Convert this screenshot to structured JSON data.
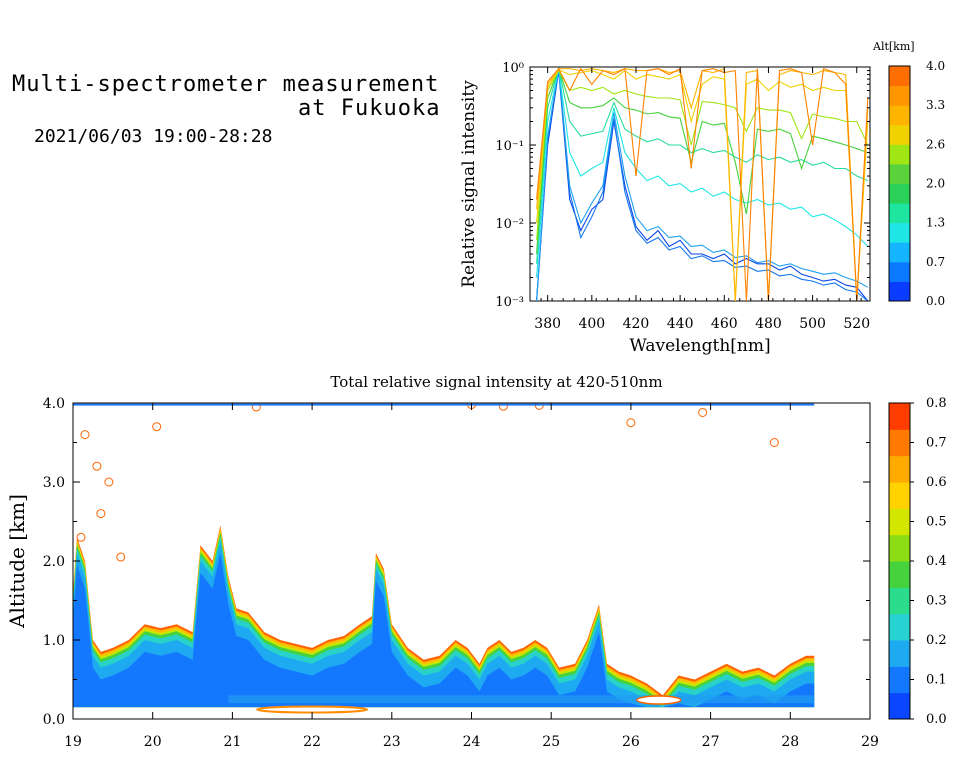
{
  "header": {
    "title_line1": "Multi-spectrometer measurement",
    "title_line2": "at Fukuoka",
    "subtitle": "2021/06/03 19:00-28:28"
  },
  "chart_data": [
    {
      "type": "line",
      "title": "",
      "xlabel": "Wavelength[nm]",
      "ylabel": "Relative signal intensity",
      "xlim": [
        372,
        526
      ],
      "ylim": [
        0.001,
        1
      ],
      "yscale": "log",
      "x_ticks": [
        380,
        400,
        420,
        440,
        460,
        480,
        500,
        520
      ],
      "y_tick_labels": [
        "10⁻³",
        "10⁻²",
        "10⁻¹",
        "10⁰"
      ],
      "y_tick_values": [
        0.001,
        0.01,
        0.1,
        1
      ],
      "colorbar": {
        "label": "Alt[km]",
        "range": [
          0.0,
          4.0
        ],
        "tick_labels": [
          "0.0",
          "0.7",
          "1.3",
          "2.0",
          "2.6",
          "3.3",
          "4.0"
        ],
        "colors": [
          "#0a3cff",
          "#0a78ff",
          "#14b4ff",
          "#1ee6e6",
          "#1ee6a0",
          "#2ad25a",
          "#5ad23c",
          "#a0e614",
          "#f0d200",
          "#ffb400",
          "#ff9600",
          "#ff6e00"
        ]
      },
      "x": [
        375,
        380,
        385,
        390,
        395,
        400,
        405,
        410,
        415,
        420,
        425,
        430,
        435,
        440,
        445,
        450,
        455,
        460,
        465,
        470,
        475,
        480,
        485,
        490,
        495,
        500,
        505,
        510,
        515,
        520,
        525
      ],
      "series": [
        {
          "color": "#0a46e6",
          "values": [
            0.001,
            0.1,
            0.9,
            0.02,
            0.008,
            0.015,
            0.02,
            0.2,
            0.03,
            0.009,
            0.006,
            0.008,
            0.005,
            0.006,
            0.004,
            0.004,
            0.0035,
            0.004,
            0.003,
            0.0035,
            0.003,
            0.003,
            0.0025,
            0.0028,
            0.0022,
            0.002,
            0.0018,
            0.0019,
            0.0016,
            0.0015,
            0.001
          ]
        },
        {
          "color": "#1478f0",
          "values": [
            0.001,
            0.12,
            0.95,
            0.025,
            0.0065,
            0.012,
            0.025,
            0.22,
            0.025,
            0.008,
            0.0055,
            0.0065,
            0.0045,
            0.005,
            0.0035,
            0.0038,
            0.0032,
            0.0033,
            0.0027,
            0.0028,
            0.0024,
            0.0025,
            0.0021,
            0.0022,
            0.0019,
            0.0018,
            0.0016,
            0.0017,
            0.0014,
            0.0013,
            0.001
          ]
        },
        {
          "color": "#1ea0f0",
          "values": [
            0.001,
            0.13,
            0.98,
            0.03,
            0.01,
            0.018,
            0.03,
            0.26,
            0.04,
            0.012,
            0.008,
            0.009,
            0.0065,
            0.0068,
            0.005,
            0.0052,
            0.0042,
            0.0045,
            0.0036,
            0.0038,
            0.0031,
            0.0033,
            0.0028,
            0.003,
            0.0026,
            0.0024,
            0.0022,
            0.0023,
            0.002,
            0.0018,
            0.0015
          ]
        },
        {
          "color": "#1ee6e6",
          "values": [
            0.002,
            0.2,
            0.95,
            0.08,
            0.04,
            0.05,
            0.06,
            0.3,
            0.08,
            0.05,
            0.035,
            0.04,
            0.03,
            0.032,
            0.025,
            0.028,
            0.022,
            0.025,
            0.02,
            0.018,
            0.02,
            0.017,
            0.018,
            0.015,
            0.016,
            0.012,
            0.013,
            0.011,
            0.009,
            0.007,
            0.005
          ]
        },
        {
          "color": "#28dc9a",
          "values": [
            0.003,
            0.3,
            0.97,
            0.2,
            0.13,
            0.14,
            0.15,
            0.35,
            0.16,
            0.13,
            0.11,
            0.12,
            0.1,
            0.1,
            0.08,
            0.09,
            0.08,
            0.085,
            0.07,
            0.06,
            0.075,
            0.065,
            0.07,
            0.06,
            0.065,
            0.055,
            0.06,
            0.05,
            0.05,
            0.04,
            0.035
          ]
        },
        {
          "color": "#46d23c",
          "values": [
            0.004,
            0.4,
            0.95,
            0.35,
            0.3,
            0.3,
            0.32,
            0.4,
            0.3,
            0.28,
            0.25,
            0.26,
            0.23,
            0.22,
            0.06,
            0.2,
            0.18,
            0.19,
            0.06,
            0.013,
            0.16,
            0.15,
            0.16,
            0.14,
            0.05,
            0.13,
            0.12,
            0.11,
            0.1,
            0.09,
            0.08
          ]
        },
        {
          "color": "#a0e614",
          "values": [
            0.006,
            0.5,
            0.9,
            0.5,
            0.55,
            0.5,
            0.55,
            0.45,
            0.5,
            0.45,
            0.42,
            0.4,
            0.4,
            0.38,
            0.1,
            0.36,
            0.35,
            0.33,
            0.3,
            0.15,
            0.3,
            0.28,
            0.28,
            0.26,
            0.12,
            0.25,
            0.23,
            0.22,
            0.2,
            0.2,
            0.1
          ]
        },
        {
          "color": "#f0d200",
          "values": [
            0.01,
            0.55,
            0.92,
            0.8,
            0.85,
            0.9,
            0.8,
            0.7,
            0.9,
            0.7,
            0.8,
            0.75,
            0.7,
            0.8,
            0.2,
            0.6,
            0.75,
            0.7,
            0.001,
            0.6,
            0.7,
            0.5,
            0.65,
            0.55,
            0.6,
            0.5,
            0.55,
            0.5,
            0.5,
            0.001,
            0.2
          ]
        },
        {
          "color": "#ffb400",
          "values": [
            0.015,
            0.6,
            0.95,
            0.95,
            0.9,
            0.95,
            0.9,
            0.85,
            0.95,
            0.9,
            0.9,
            0.95,
            0.85,
            0.9,
            0.3,
            0.9,
            0.85,
            0.95,
            0.001,
            0.85,
            0.9,
            0.001,
            0.8,
            0.9,
            0.85,
            0.8,
            0.9,
            0.85,
            0.8,
            0.001,
            0.3
          ]
        },
        {
          "color": "#ff8200",
          "values": [
            0.02,
            0.65,
            0.95,
            0.5,
            0.95,
            0.6,
            0.9,
            0.8,
            0.95,
            0.04,
            0.9,
            0.95,
            0.8,
            0.95,
            0.05,
            0.9,
            0.95,
            0.85,
            0.9,
            0.001,
            0.95,
            0.001,
            0.9,
            0.95,
            0.85,
            0.1,
            0.95,
            0.85,
            0.6,
            0.001,
            0.4
          ]
        }
      ]
    },
    {
      "type": "heatmap",
      "title": "Total relative signal intensity at 420-510nm",
      "xlabel": "",
      "ylabel": "Altitude [km]",
      "xlim": [
        19,
        29
      ],
      "ylim": [
        0.0,
        4.0
      ],
      "x_ticks": [
        19,
        20,
        21,
        22,
        23,
        24,
        25,
        26,
        27,
        28,
        29
      ],
      "y_tick_labels": [
        "0.0",
        "1.0",
        "2.0",
        "3.0",
        "4.0"
      ],
      "y_tick_values": [
        0.0,
        1.0,
        2.0,
        3.0,
        4.0
      ],
      "colorbar": {
        "range": [
          0.0,
          0.8
        ],
        "tick_labels": [
          "0.0",
          "0.1",
          "0.2",
          "0.3",
          "0.4",
          "0.5",
          "0.6",
          "0.7",
          "0.8"
        ],
        "colors": [
          "#0a46ff",
          "#1478ff",
          "#1eaaf0",
          "#28d2d2",
          "#2adc8c",
          "#46d23c",
          "#8cdc14",
          "#d2e600",
          "#ffd200",
          "#ffaa00",
          "#ff7800",
          "#ff3c00"
        ]
      },
      "cloud_top_km": {
        "time": [
          19.0,
          19.05,
          19.15,
          19.25,
          19.35,
          19.5,
          19.7,
          19.9,
          20.1,
          20.3,
          20.5,
          20.6,
          20.75,
          20.85,
          20.95,
          21.05,
          21.2,
          21.4,
          21.6,
          21.8,
          22.0,
          22.2,
          22.4,
          22.6,
          22.75,
          22.8,
          22.9,
          23.0,
          23.2,
          23.4,
          23.6,
          23.8,
          23.95,
          24.1,
          24.2,
          24.35,
          24.5,
          24.65,
          24.8,
          24.95,
          25.1,
          25.3,
          25.45,
          25.6,
          25.7,
          25.85,
          26.0,
          26.2,
          26.4,
          26.6,
          26.8,
          27.0,
          27.2,
          27.4,
          27.6,
          27.8,
          28.0,
          28.2,
          28.3
        ],
        "altitude": [
          1.6,
          2.3,
          2.0,
          1.0,
          0.85,
          0.9,
          1.0,
          1.2,
          1.15,
          1.2,
          1.1,
          2.2,
          2.0,
          2.45,
          1.8,
          1.4,
          1.35,
          1.1,
          1.0,
          0.95,
          0.9,
          1.0,
          1.05,
          1.2,
          1.3,
          2.1,
          1.9,
          1.2,
          0.9,
          0.75,
          0.8,
          1.0,
          0.9,
          0.7,
          0.9,
          1.0,
          0.85,
          0.9,
          1.0,
          0.9,
          0.65,
          0.7,
          1.0,
          1.45,
          0.7,
          0.6,
          0.55,
          0.45,
          0.3,
          0.55,
          0.5,
          0.6,
          0.7,
          0.6,
          0.65,
          0.55,
          0.7,
          0.8,
          0.8
        ]
      }
    }
  ]
}
